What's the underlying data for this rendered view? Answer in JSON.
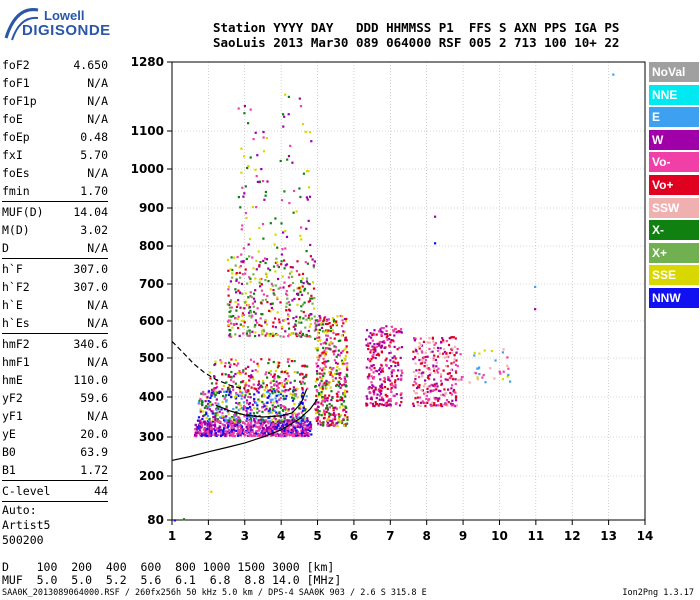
{
  "logo": {
    "line1": "Lowell",
    "line2": "DIGISONDE"
  },
  "header": {
    "line1": "Station YYYY DAY   DDD HHMMSS P1  FFS S AXN PPS IGA PS",
    "line2": "SaoLuis 2013 Mar30 089 064000 RSF 005 2 713 100 10+ 22"
  },
  "params": {
    "group1": [
      {
        "label": "foF2",
        "value": "4.650"
      },
      {
        "label": "foF1",
        "value": "N/A"
      },
      {
        "label": "foF1p",
        "value": "N/A"
      },
      {
        "label": "foE",
        "value": "N/A"
      },
      {
        "label": "foEp",
        "value": "0.48"
      },
      {
        "label": "fxI",
        "value": "5.70"
      },
      {
        "label": "foEs",
        "value": "N/A"
      },
      {
        "label": "fmin",
        "value": "1.70"
      }
    ],
    "group2": [
      {
        "label": "MUF(D)",
        "value": "14.04"
      },
      {
        "label": "M(D)",
        "value": "3.02"
      },
      {
        "label": "D",
        "value": "N/A"
      }
    ],
    "group3": [
      {
        "label": "h`F",
        "value": "307.0"
      },
      {
        "label": "h`F2",
        "value": "307.0"
      },
      {
        "label": "h`E",
        "value": "N/A"
      },
      {
        "label": "h`Es",
        "value": "N/A"
      }
    ],
    "group4": [
      {
        "label": "hmF2",
        "value": "340.6"
      },
      {
        "label": "hmF1",
        "value": "N/A"
      },
      {
        "label": "hmE",
        "value": "110.0"
      },
      {
        "label": "yF2",
        "value": "59.6"
      },
      {
        "label": "yF1",
        "value": "N/A"
      },
      {
        "label": "yE",
        "value": "20.0"
      },
      {
        "label": "B0",
        "value": "63.9"
      },
      {
        "label": "B1",
        "value": "1.72"
      }
    ],
    "group5": [
      {
        "label": "C-level",
        "value": "44"
      }
    ],
    "auto": [
      "Auto:",
      "Artist5",
      "500200"
    ]
  },
  "legend": [
    {
      "label": "NoVal",
      "color": "#a0a0a0"
    },
    {
      "label": "NNE",
      "color": "#00e8f0"
    },
    {
      "label": "E",
      "color": "#3ea0f0"
    },
    {
      "label": "W",
      "color": "#a000a8"
    },
    {
      "label": "Vo-",
      "color": "#f040a8"
    },
    {
      "label": "Vo+",
      "color": "#e00020"
    },
    {
      "label": "SSW",
      "color": "#f0b0b0"
    },
    {
      "label": "X-",
      "color": "#108010"
    },
    {
      "label": "X+",
      "color": "#70b050"
    },
    {
      "label": "SSE",
      "color": "#d8d800"
    },
    {
      "label": "NNW",
      "color": "#1010f0"
    }
  ],
  "bottom": {
    "line1": "D    100  200  400  600  800 1000 1500 3000 [km]",
    "line2": "MUF  5.0  5.0  5.2  5.6  6.1  6.8  8.8 14.0 [MHz]"
  },
  "footer": {
    "left": "SAA0K_2013089064000.RSF / 260fx256h 50 kHz 5.0 km / DPS-4 SAA0K 903 / 2.6 S 315.8 E",
    "right": "Ion2Png 1.3.17"
  },
  "chart_data": {
    "type": "scatter",
    "xlim": [
      1,
      14
    ],
    "ylim": [
      80,
      1280
    ],
    "xticks": [
      "1",
      "2",
      "3",
      "4",
      "5",
      "6",
      "7",
      "8",
      "9",
      "10",
      "11",
      "12",
      "13",
      "14"
    ],
    "yticks": [
      "80",
      "200",
      "300",
      "400",
      "500",
      "600",
      "700",
      "800",
      "900",
      "1000",
      "1100",
      "1280"
    ],
    "grid": true,
    "clusters": [
      {
        "xmin": 1.6,
        "xmax": 4.8,
        "ymin": 305,
        "ymax": 345,
        "n": 700,
        "colors": [
          "#f040a8",
          "#a000a8",
          "#f040a8",
          "#1010f0"
        ]
      },
      {
        "xmin": 1.7,
        "xmax": 4.7,
        "ymin": 340,
        "ymax": 420,
        "n": 450,
        "colors": [
          "#f040a8",
          "#a000a8",
          "#d8d800",
          "#1010f0",
          "#3ea0f0",
          "#108010"
        ]
      },
      {
        "xmin": 2.0,
        "xmax": 4.7,
        "ymin": 420,
        "ymax": 500,
        "n": 200,
        "colors": [
          "#f040a8",
          "#d8d800",
          "#a000a8",
          "#108010",
          "#e00020"
        ]
      },
      {
        "xmin": 2.5,
        "xmax": 4.9,
        "ymin": 560,
        "ymax": 780,
        "n": 380,
        "colors": [
          "#108010",
          "#e00020",
          "#f040a8",
          "#d8d800",
          "#a000a8",
          "#70b050"
        ]
      },
      {
        "xmin": 2.8,
        "xmax": 4.8,
        "ymin": 780,
        "ymax": 1200,
        "n": 100,
        "colors": [
          "#d8d800",
          "#108010",
          "#f040a8",
          "#a000a8"
        ]
      },
      {
        "xmin": 4.9,
        "xmax": 5.8,
        "ymin": 330,
        "ymax": 620,
        "n": 420,
        "colors": [
          "#f040a8",
          "#108010",
          "#a000a8",
          "#d8d800",
          "#e00020"
        ]
      },
      {
        "xmin": 6.3,
        "xmax": 7.3,
        "ymin": 380,
        "ymax": 590,
        "n": 260,
        "colors": [
          "#f040a8",
          "#a000a8",
          "#e00020"
        ]
      },
      {
        "xmin": 7.6,
        "xmax": 8.8,
        "ymin": 380,
        "ymax": 560,
        "n": 260,
        "colors": [
          "#f040a8",
          "#a000a8",
          "#e00020",
          "#f0b0b0"
        ]
      },
      {
        "xmin": 8.8,
        "xmax": 10.3,
        "ymin": 440,
        "ymax": 530,
        "n": 40,
        "colors": [
          "#f040a8",
          "#3ea0f0",
          "#f0b0b0",
          "#d8d800"
        ]
      }
    ],
    "curves": [
      {
        "name": "profile",
        "style": "solid",
        "points": [
          [
            1,
            240
          ],
          [
            1.5,
            250
          ],
          [
            2,
            262
          ],
          [
            2.5,
            273
          ],
          [
            3,
            285
          ],
          [
            3.5,
            300
          ],
          [
            4,
            318
          ],
          [
            4.5,
            345
          ],
          [
            4.8,
            370
          ],
          [
            5.0,
            395
          ]
        ]
      },
      {
        "name": "oblique",
        "style": "solid",
        "points": [
          [
            2.2,
            380
          ],
          [
            2.6,
            365
          ],
          [
            3,
            355
          ],
          [
            3.5,
            350
          ],
          [
            4,
            353
          ],
          [
            4.3,
            360
          ],
          [
            4.55,
            385
          ],
          [
            4.7,
            420
          ]
        ]
      },
      {
        "name": "extrapolation",
        "style": "dashed",
        "points": [
          [
            1,
            545
          ],
          [
            1.3,
            515
          ],
          [
            1.6,
            485
          ],
          [
            1.9,
            462
          ],
          [
            2.2,
            445
          ],
          [
            2.6,
            430
          ],
          [
            3,
            420
          ]
        ]
      }
    ],
    "isolated_points": [
      {
        "x": 13.1,
        "y": 1250,
        "color": "#3ea0f0"
      },
      {
        "x": 1.05,
        "y": 82,
        "color": "#1010f0"
      },
      {
        "x": 1.3,
        "y": 85,
        "color": "#108010"
      },
      {
        "x": 2.05,
        "y": 160,
        "color": "#d8d800"
      },
      {
        "x": 10.95,
        "y": 695,
        "color": "#3ea0f0"
      },
      {
        "x": 10.95,
        "y": 635,
        "color": "#a000a8"
      },
      {
        "x": 8.2,
        "y": 880,
        "color": "#a000a8"
      },
      {
        "x": 8.2,
        "y": 810,
        "color": "#1010f0"
      }
    ]
  }
}
